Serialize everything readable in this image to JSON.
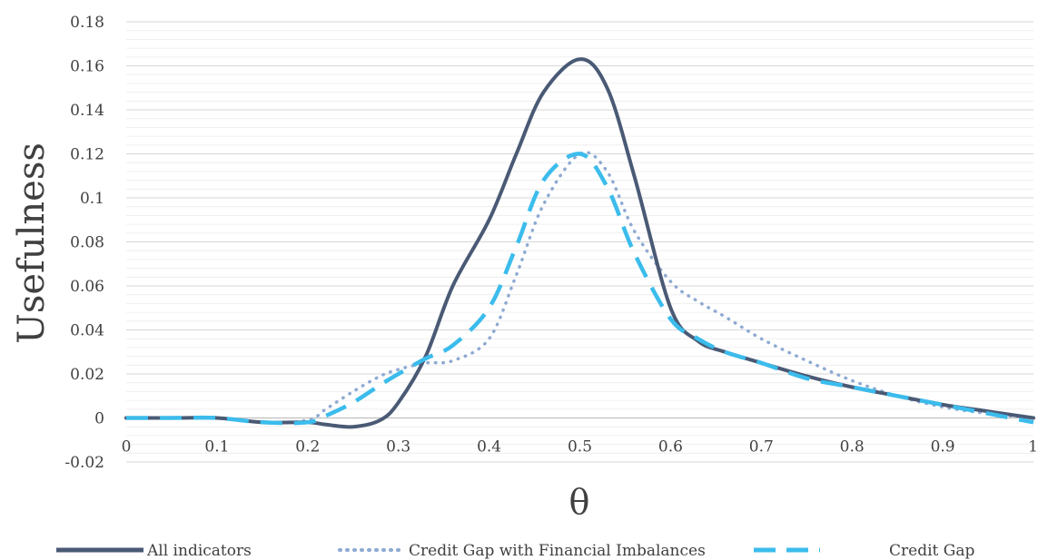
{
  "chart_data": {
    "type": "line",
    "xlabel": "θ",
    "ylabel": "Usefulness",
    "xlim": [
      0,
      1
    ],
    "ylim": [
      -0.02,
      0.18
    ],
    "x_ticks": [
      "0",
      "0.1",
      "0.2",
      "0.3",
      "0.4",
      "0.5",
      "0.6",
      "0.7",
      "0.8",
      "0.9",
      "1"
    ],
    "y_ticks": [
      "-0.02",
      "0",
      "0.02",
      "0.04",
      "0.06",
      "0.08",
      "0.1",
      "0.12",
      "0.14",
      "0.16",
      "0.18"
    ],
    "grid": "horizontal minor and major lines",
    "legend_position": "bottom",
    "series": [
      {
        "name": "All indicators",
        "style": "solid",
        "color": "#4a5a75",
        "x": [
          0,
          0.05,
          0.1,
          0.15,
          0.2,
          0.22,
          0.25,
          0.28,
          0.3,
          0.33,
          0.36,
          0.4,
          0.43,
          0.46,
          0.5,
          0.53,
          0.56,
          0.6,
          0.63,
          0.66,
          0.7,
          0.75,
          0.8,
          0.85,
          0.9,
          0.95,
          1.0
        ],
        "y": [
          0,
          0,
          0,
          -0.002,
          -0.002,
          -0.003,
          -0.004,
          -0.001,
          0.007,
          0.028,
          0.06,
          0.09,
          0.12,
          0.148,
          0.163,
          0.15,
          0.11,
          0.05,
          0.035,
          0.03,
          0.025,
          0.019,
          0.014,
          0.01,
          0.006,
          0.003,
          0
        ]
      },
      {
        "name": "Credit Gap with Financial Imbalances",
        "style": "dotted",
        "color": "#8faad2",
        "x": [
          0,
          0.05,
          0.1,
          0.15,
          0.2,
          0.22,
          0.25,
          0.28,
          0.3,
          0.33,
          0.36,
          0.4,
          0.43,
          0.46,
          0.5,
          0.53,
          0.56,
          0.6,
          0.63,
          0.66,
          0.7,
          0.75,
          0.8,
          0.85,
          0.9,
          0.95,
          1.0
        ],
        "y": [
          0,
          0,
          0,
          -0.002,
          -0.001,
          0.004,
          0.012,
          0.019,
          0.022,
          0.025,
          0.026,
          0.036,
          0.065,
          0.097,
          0.12,
          0.112,
          0.085,
          0.062,
          0.053,
          0.046,
          0.036,
          0.026,
          0.017,
          0.01,
          0.005,
          0.002,
          0
        ]
      },
      {
        "name": "Credit Gap",
        "style": "dashed",
        "color": "#3bbcec",
        "x": [
          0,
          0.05,
          0.1,
          0.15,
          0.2,
          0.22,
          0.25,
          0.28,
          0.3,
          0.33,
          0.36,
          0.4,
          0.43,
          0.46,
          0.5,
          0.53,
          0.56,
          0.6,
          0.63,
          0.66,
          0.7,
          0.75,
          0.8,
          0.85,
          0.9,
          0.95,
          1.0
        ],
        "y": [
          0,
          0,
          0,
          -0.002,
          -0.002,
          0.001,
          0.007,
          0.015,
          0.02,
          0.027,
          0.033,
          0.05,
          0.078,
          0.108,
          0.12,
          0.105,
          0.075,
          0.045,
          0.036,
          0.03,
          0.025,
          0.018,
          0.014,
          0.01,
          0.006,
          0.002,
          -0.002
        ]
      }
    ]
  }
}
